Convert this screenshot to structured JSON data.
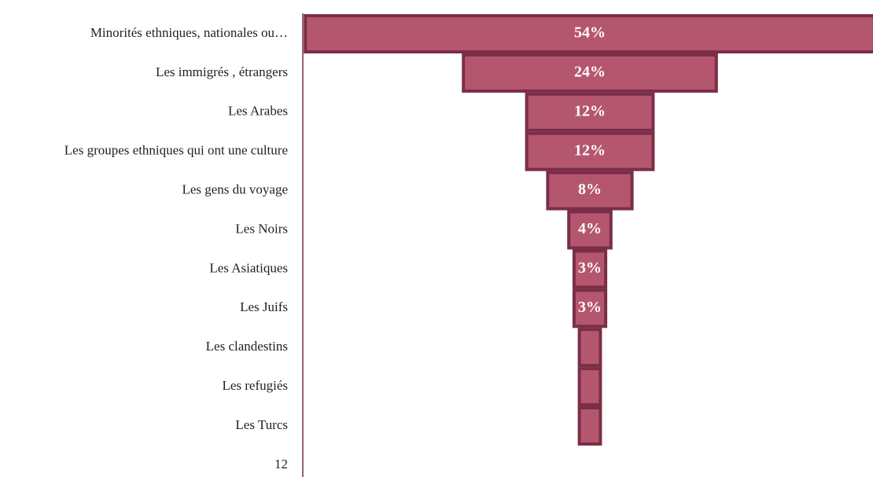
{
  "chart_data": {
    "type": "funnel",
    "categories": [
      "Minorités ethniques, nationales ou…",
      "Les immigrés , étrangers",
      "Les Arabes",
      "Les groupes ethniques qui ont une culture",
      "Les gens du voyage",
      "Les Noirs",
      "Les Asiatiques",
      "Les Juifs",
      "Les clandestins",
      "Les refugiés",
      "Les Turcs",
      "12"
    ],
    "values": [
      54,
      24,
      12,
      12,
      8,
      4,
      3,
      3,
      2,
      2,
      2,
      null
    ],
    "value_labels": [
      "54%",
      "24%",
      "12%",
      "12%",
      "8%",
      "4%",
      "3%",
      "3%",
      null,
      null,
      null,
      null
    ],
    "color": "#b5566f",
    "edge_color": "#7a2e47"
  }
}
